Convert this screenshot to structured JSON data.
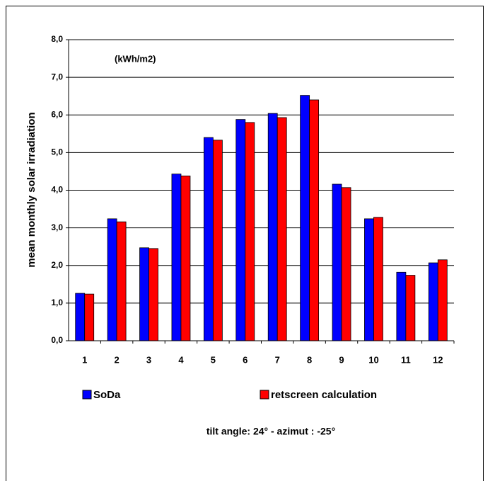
{
  "chart_data": {
    "type": "bar",
    "y_label": "mean monthly solar irradiation",
    "annotation": "(kWh/m2)",
    "subtitle": "tilt angle: 24° - azimut : -25°",
    "categories": [
      "1",
      "2",
      "3",
      "4",
      "5",
      "6",
      "7",
      "8",
      "9",
      "10",
      "11",
      "12"
    ],
    "series": [
      {
        "name": "SoDa",
        "color": "#0000ff",
        "values": [
          1.26,
          3.24,
          2.47,
          4.43,
          5.4,
          5.88,
          6.04,
          6.52,
          4.16,
          3.24,
          1.82,
          2.07
        ]
      },
      {
        "name": "retscreen calculation",
        "color": "#ff0000",
        "values": [
          1.24,
          3.16,
          2.45,
          4.38,
          5.33,
          5.8,
          5.93,
          6.4,
          4.07,
          3.28,
          1.74,
          2.15
        ]
      }
    ],
    "ylim": [
      0,
      8
    ],
    "yticks": [
      {
        "value": 0,
        "label": "0,0"
      },
      {
        "value": 1,
        "label": "1,0"
      },
      {
        "value": 2,
        "label": "2,0"
      },
      {
        "value": 3,
        "label": "3,0"
      },
      {
        "value": 4,
        "label": "4,0"
      },
      {
        "value": 5,
        "label": "5,0"
      },
      {
        "value": 6,
        "label": "6,0"
      },
      {
        "value": 7,
        "label": "7,0"
      },
      {
        "value": 8,
        "label": "8,0"
      }
    ],
    "grid": true
  }
}
